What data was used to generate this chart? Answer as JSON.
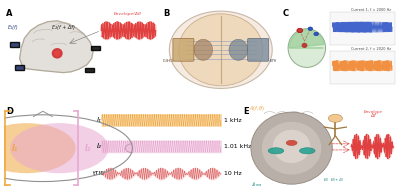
{
  "bg_color": "#ffffff",
  "panel_label_fontsize": 6,
  "panel_label_weight": "bold",
  "label_I1": "I₁",
  "label_I2": "I₂",
  "label_tTIS": "tTIS",
  "label_1kHz": "1 kHz",
  "label_101kHz": "1.01 kHz",
  "label_10Hz": "10 Hz",
  "color_orange": "#F0A840",
  "color_pink": "#E8A8D0",
  "color_red_envelope": "#E04040",
  "color_tis_wave": "#E07070",
  "color_tis_bg": "#F8D0D0",
  "color_blue_elec": "#3355AA",
  "color_brain_fill": "#E8E0D4",
  "color_brain_edge": "#B0A898",
  "color_green_scalp": "#88C888",
  "envelope_label": "Envelope(Δf)",
  "current1_label": "Current 1, f = 2000 Hz",
  "current2_label": "Current 2, f = 2020 Hz",
  "E1_label": "E₁(f)",
  "E2_label": "E₂(f + Δf)",
  "color_orange_bracket": "#F0A840",
  "color_pink_bracket": "#E8A8D0",
  "brain_gyri_color": "#C8C0B8",
  "color_head_teal": "#80C0B8",
  "color_head_fill": "#D4E8D0"
}
